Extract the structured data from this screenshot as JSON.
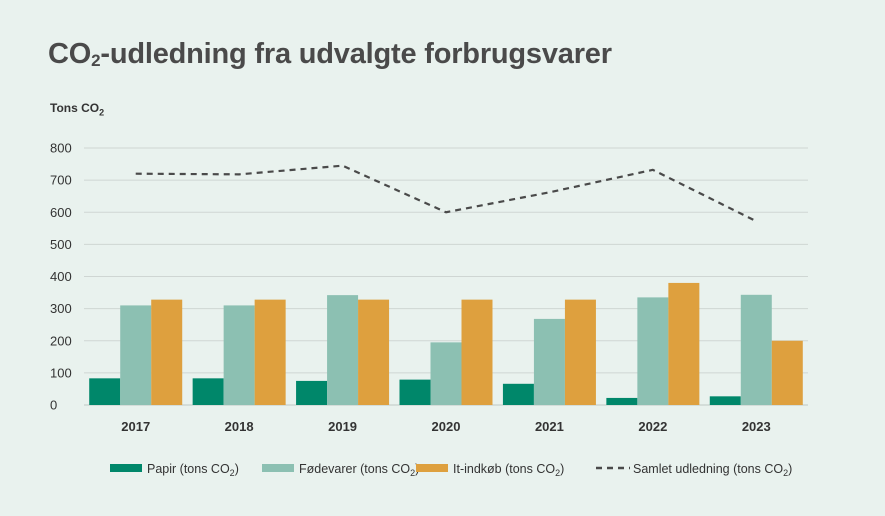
{
  "title_main": "CO",
  "title_sub": "2",
  "title_rest": "-udledning fra udvalgte forbrugsvarer",
  "unit_main": "Tons CO",
  "unit_sub": "2",
  "chart_data": {
    "type": "bar",
    "categories": [
      "2017",
      "2018",
      "2019",
      "2020",
      "2021",
      "2022",
      "2023"
    ],
    "ylim": [
      0,
      800
    ],
    "yticks": [
      0,
      100,
      200,
      300,
      400,
      500,
      600,
      700,
      800
    ],
    "ylabel": "Tons CO2",
    "grid": true,
    "legend_position": "bottom",
    "series": [
      {
        "name": "Papir (tons CO",
        "name_sub": "2",
        "name_end": ")",
        "type": "bar",
        "color": "#00876a",
        "values": [
          83,
          83,
          75,
          79,
          66,
          22,
          27
        ]
      },
      {
        "name": "Fødevarer (tons CO",
        "name_sub": "2",
        "name_end": ")",
        "type": "bar",
        "color": "#8cc0b2",
        "values": [
          310,
          310,
          342,
          195,
          268,
          335,
          343
        ]
      },
      {
        "name": "It-indkøb (tons CO",
        "name_sub": "2",
        "name_end": ")",
        "type": "bar",
        "color": "#dea03e",
        "values": [
          328,
          328,
          328,
          328,
          328,
          380,
          200
        ]
      },
      {
        "name": "Samlet udledning (tons CO",
        "name_sub": "2",
        "name_end": ")",
        "type": "line",
        "color": "#4a4a4a",
        "values": [
          720,
          718,
          745,
          600,
          662,
          732,
          572
        ]
      }
    ]
  }
}
